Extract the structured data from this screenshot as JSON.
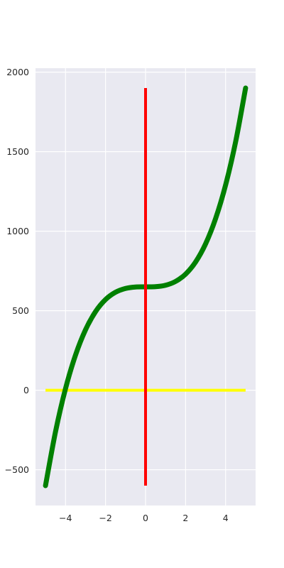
{
  "chart_data": {
    "type": "line",
    "title": "",
    "xlabel": "",
    "ylabel": "",
    "xlim": [
      -5.5,
      5.5
    ],
    "ylim": [
      -725,
      2025
    ],
    "grid": true,
    "background": "#e9e9f1",
    "x_ticks": [
      {
        "value": -4,
        "label": "−4"
      },
      {
        "value": -2,
        "label": "−2"
      },
      {
        "value": 0,
        "label": "0"
      },
      {
        "value": 2,
        "label": "2"
      },
      {
        "value": 4,
        "label": "4"
      }
    ],
    "y_ticks": [
      {
        "value": -500,
        "label": "−500"
      },
      {
        "value": 0,
        "label": "0"
      },
      {
        "value": 500,
        "label": "500"
      },
      {
        "value": 1000,
        "label": "1000"
      },
      {
        "value": 1500,
        "label": "1500"
      },
      {
        "value": 2000,
        "label": "2000"
      }
    ],
    "series": [
      {
        "color": "#008000",
        "style": "curve y = 10x³ + 650",
        "x": [
          -5,
          -4.5,
          -4,
          -3.5,
          -3,
          -2.5,
          -2,
          -1.5,
          -1,
          -0.5,
          0,
          0.5,
          1,
          1.5,
          2,
          2.5,
          3,
          3.5,
          4,
          4.5,
          5
        ],
        "y": [
          -600,
          -261,
          10,
          221,
          380,
          494,
          570,
          616,
          640,
          649,
          650,
          651,
          660,
          684,
          730,
          806,
          920,
          1079,
          1290,
          1561,
          1900
        ]
      },
      {
        "color": "#ff0000",
        "style": "vertical line at x = 0",
        "x": [
          0,
          0
        ],
        "y": [
          -600,
          1900
        ]
      },
      {
        "color": "#ffff00",
        "style": "horizontal line at y = 0",
        "x": [
          -5,
          5
        ],
        "y": [
          0,
          0
        ]
      }
    ]
  }
}
